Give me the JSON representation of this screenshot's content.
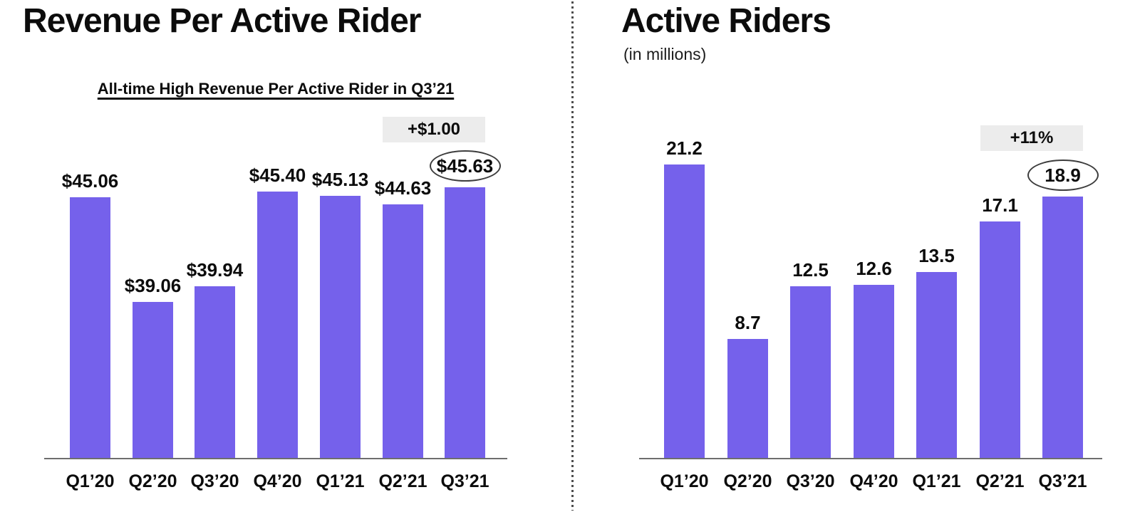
{
  "colors": {
    "bar": "#7561EB",
    "badge_bg": "#ECECEC",
    "axis": "#6E6E6E",
    "ellipse_border": "#3D3D3D",
    "text": "#0C0C0C",
    "divider_dot": "#4D4D4D"
  },
  "chart_data": [
    {
      "id": "revenue-per-active-rider",
      "type": "bar",
      "title": "Revenue Per Active Rider",
      "subtitle": "All-time High Revenue Per Active Rider in Q3’21",
      "categories": [
        "Q1’20",
        "Q2’20",
        "Q3’20",
        "Q4’20",
        "Q1’21",
        "Q2’21",
        "Q3’21"
      ],
      "values": [
        45.06,
        39.06,
        39.94,
        45.4,
        45.13,
        44.63,
        45.63
      ],
      "value_labels": [
        "$45.06",
        "$39.06",
        "$39.94",
        "$45.40",
        "$45.13",
        "$44.63",
        "$45.63"
      ],
      "annotation_badge": "+$1.00",
      "circled_index": 6,
      "xlabel": "",
      "ylabel": "",
      "ylim": [
        30.1,
        45.63
      ],
      "grid": false,
      "legend": "none"
    },
    {
      "id": "active-riders",
      "type": "bar",
      "title": "Active Riders",
      "subtitle": "(in millions)",
      "categories": [
        "Q1’20",
        "Q2’20",
        "Q3’20",
        "Q4’20",
        "Q1’21",
        "Q2’21",
        "Q3’21"
      ],
      "values": [
        21.2,
        8.7,
        12.5,
        12.6,
        13.5,
        17.1,
        18.9
      ],
      "value_labels": [
        "21.2",
        "8.7",
        "12.5",
        "12.6",
        "13.5",
        "17.1",
        "18.9"
      ],
      "annotation_badge": "+11%",
      "circled_index": 6,
      "xlabel": "",
      "ylabel": "",
      "ylim": [
        0.2,
        21.2
      ],
      "grid": false,
      "legend": "none"
    }
  ]
}
